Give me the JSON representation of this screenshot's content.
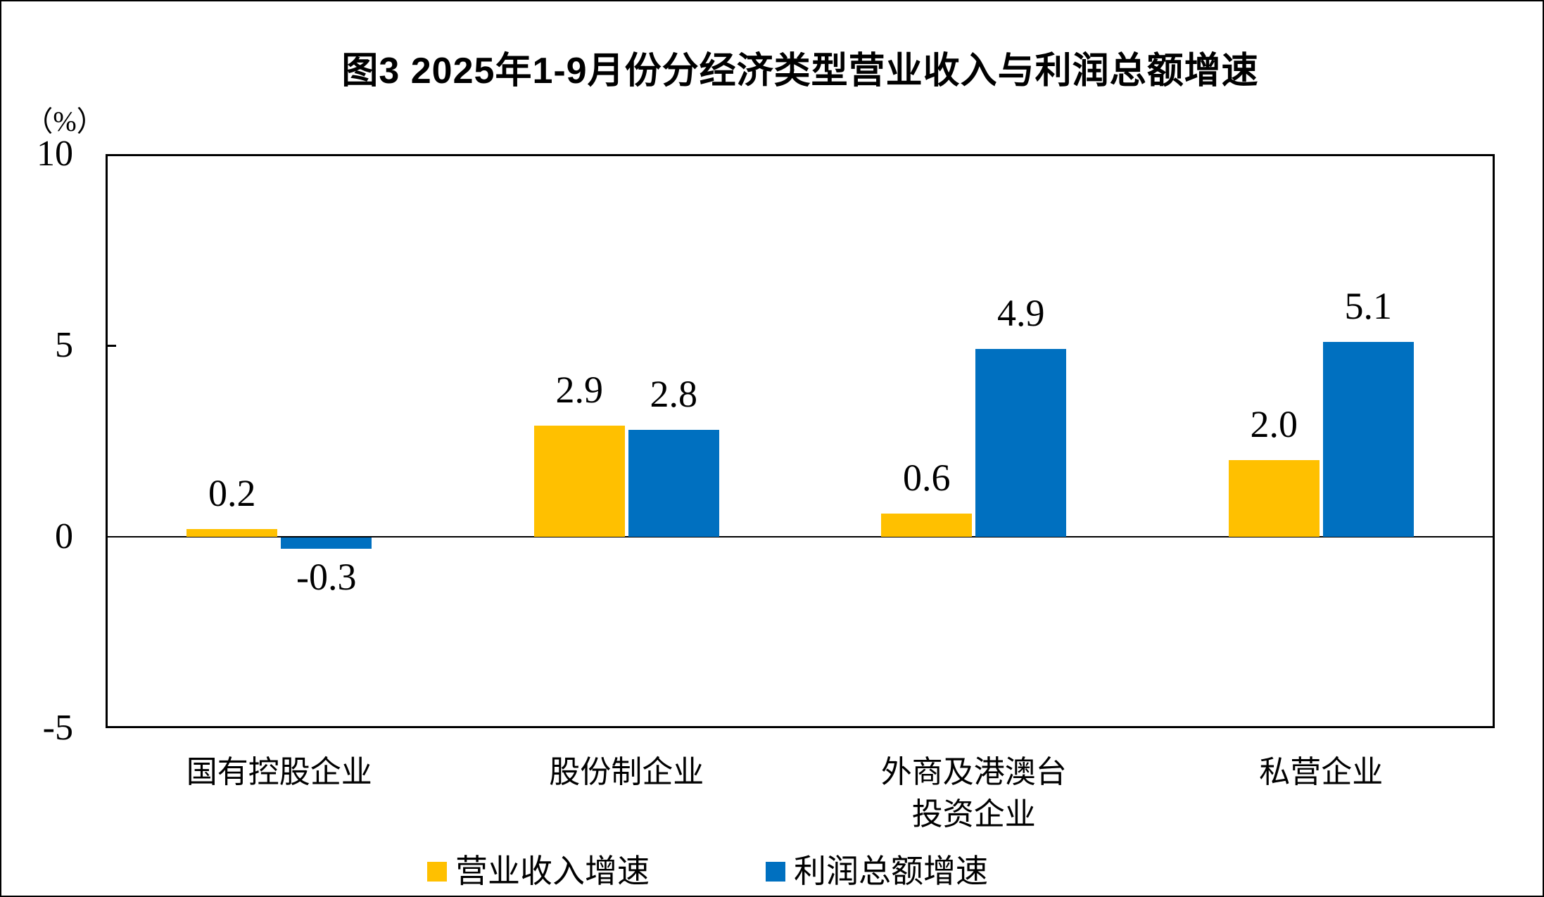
{
  "title": "图3  2025年1-9月份分经济类型营业收入与利润总额增速",
  "y_axis": {
    "unit": "（%）",
    "tick_labels": [
      "10",
      "5",
      "0",
      "-5"
    ],
    "tick_values": [
      10,
      5,
      0,
      -5
    ]
  },
  "legend": {
    "items": [
      {
        "label": "营业收入增速",
        "color": "#FFC000"
      },
      {
        "label": "利润总额增速",
        "color": "#0070C0"
      }
    ]
  },
  "chart_data": {
    "type": "bar",
    "title": "图3  2025年1-9月份分经济类型营业收入与利润总额增速",
    "categories": [
      "国有控股企业",
      "股份制企业",
      "外商及港澳台投资企业",
      "私营企业"
    ],
    "category_label_lines": [
      [
        "国有控股企业"
      ],
      [
        "股份制企业"
      ],
      [
        "外商及港澳台",
        "投资企业"
      ],
      [
        "私营企业"
      ]
    ],
    "series": [
      {
        "name": "营业收入增速",
        "color": "#FFC000",
        "values": [
          0.2,
          2.9,
          0.6,
          2.0
        ]
      },
      {
        "name": "利润总额增速",
        "color": "#0070C0",
        "values": [
          -0.3,
          2.8,
          4.9,
          5.1
        ]
      }
    ],
    "value_labels": [
      [
        "0.2",
        "2.9",
        "0.6",
        "2.0"
      ],
      [
        "-0.3",
        "2.8",
        "4.9",
        "5.1"
      ]
    ],
    "ylabel": "（%）",
    "ylim": [
      -5,
      10
    ],
    "ytick_step": 5,
    "grid": false,
    "legend_position": "bottom"
  }
}
